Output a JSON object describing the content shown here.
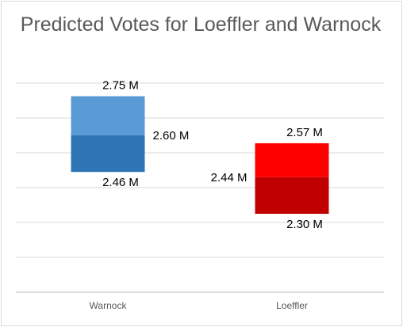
{
  "chart_data": {
    "type": "bar",
    "subtype": "floating-range",
    "title": "Predicted Votes for Loeffler and Warnock",
    "xlabel": "",
    "ylabel": "",
    "ylim": [
      2.0,
      2.8
    ],
    "gridlines": true,
    "legend": "none",
    "categories": [
      "Warnock",
      "Loeffler"
    ],
    "bars": [
      {
        "category": "Warnock",
        "low": 2.46,
        "mid": 2.6,
        "high": 2.75,
        "low_label": "2.46 M",
        "mid_label": "2.60 M",
        "high_label": "2.75 M",
        "color_upper": "#5b9bd5",
        "color_lower": "#2e75b6"
      },
      {
        "category": "Loeffler",
        "low": 2.3,
        "mid": 2.44,
        "high": 2.57,
        "low_label": "2.30 M",
        "mid_label": "2.44 M",
        "high_label": "2.57 M",
        "color_upper": "#ff0000",
        "color_lower": "#c00000"
      }
    ]
  }
}
